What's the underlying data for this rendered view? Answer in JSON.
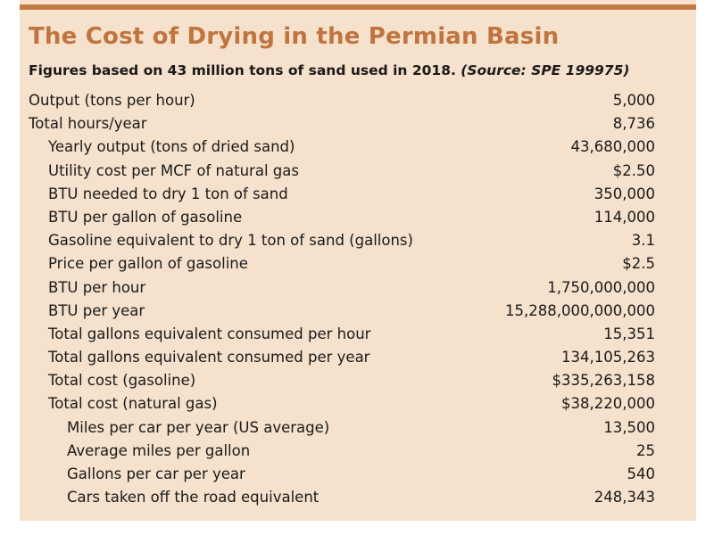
{
  "title": "The Cost of Drying in the Permian Basin",
  "subtitle": {
    "main": "Figures based on 43 million tons of sand used in 2018.",
    "source": "(Source: SPE 199975)"
  },
  "rows": [
    {
      "label": "Output (tons per hour)",
      "value": "5,000"
    },
    {
      "label": "Total hours/year",
      "value": "8,736"
    },
    {
      "label": "Yearly output (tons of dried sand)",
      "value": "43,680,000"
    },
    {
      "label": "Utility cost per MCF of natural gas",
      "value": "$2.50"
    },
    {
      "label": "BTU needed to dry 1 ton of sand",
      "value": "350,000"
    },
    {
      "label": "BTU per gallon of gasoline",
      "value": "114,000"
    },
    {
      "label": "Gasoline equivalent to dry 1 ton of sand (gallons)",
      "value": "3.1"
    },
    {
      "label": "Price per gallon of gasoline",
      "value": "$2.5"
    },
    {
      "label": "BTU per hour",
      "value": "1,750,000,000"
    },
    {
      "label": "BTU per year",
      "value": "15,288,000,000,000"
    },
    {
      "label": "Total gallons equivalent consumed per hour",
      "value": "15,351"
    },
    {
      "label": "Total gallons equivalent consumed per year",
      "value": "134,105,263"
    },
    {
      "label": "Total cost (gasoline)",
      "value": "$335,263,158"
    },
    {
      "label": "Total cost (natural gas)",
      "value": "$38,220,000"
    },
    {
      "label": "Miles per car per year (US average)",
      "value": "13,500"
    },
    {
      "label": "Average miles per gallon",
      "value": "25"
    },
    {
      "label": "Gallons per car per year",
      "value": "540"
    },
    {
      "label": "Cars taken off the road equivalent",
      "value": "248,343"
    }
  ],
  "colors": {
    "background": "#f5e1cc",
    "accent": "#c0743f",
    "text": "#1a1a1a"
  }
}
